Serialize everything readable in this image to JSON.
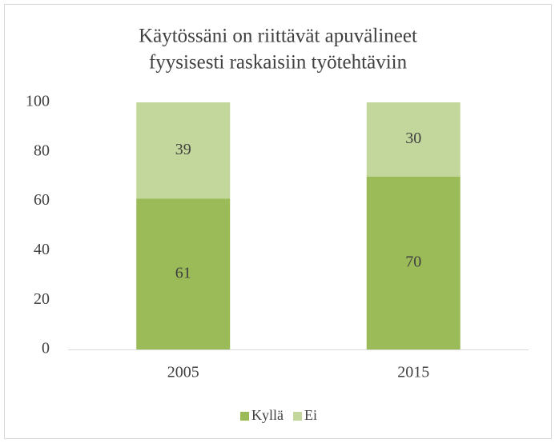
{
  "chart_data": {
    "type": "stacked_bar",
    "title": [
      "Käytössäni on riittävät apuvälineet",
      "fyysisesti raskaisiin työtehtäviin"
    ],
    "categories": [
      "2005",
      "2015"
    ],
    "series": [
      {
        "name": "Kyllä",
        "color": "#9bbb59",
        "values": [
          61,
          70
        ]
      },
      {
        "name": "Ei",
        "color": "#c3d69b",
        "values": [
          39,
          30
        ]
      }
    ],
    "ylim": [
      0,
      100
    ],
    "yticks": [
      0,
      20,
      40,
      60,
      80,
      100
    ],
    "grid": false,
    "legend": "bottom"
  }
}
